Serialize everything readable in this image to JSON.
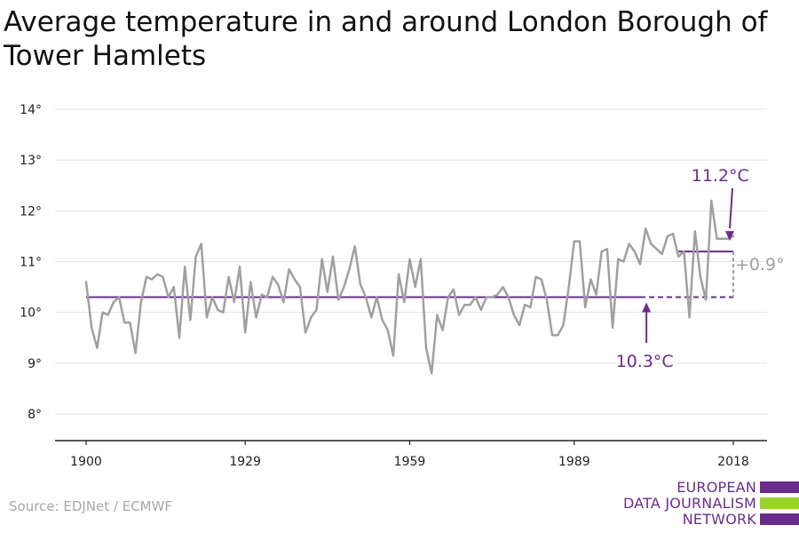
{
  "title": "Average temperature in and around London Borough of Tower Hamlets",
  "source": "Source: EDJNet / ECMWF",
  "logo": {
    "lines": [
      "EUROPEAN",
      "DATA JOURNALISM",
      "NETWORK"
    ],
    "colors": {
      "purple": "#6b2c8e",
      "green": "#9ad12b"
    }
  },
  "colors": {
    "series": "#a0a0a0",
    "average": "#6b2c8e",
    "grid": "#e2e2e2",
    "axis": "#222222"
  },
  "chart_data": {
    "type": "line",
    "title": "Average temperature in and around London Borough of Tower Hamlets",
    "xlabel": "",
    "ylabel": "",
    "xlim": [
      1900,
      2018
    ],
    "ylim": [
      8,
      14
    ],
    "x_ticks": [
      1900,
      1929,
      1959,
      1989,
      2018
    ],
    "y_ticks": [
      8,
      9,
      10,
      11,
      12,
      13,
      14
    ],
    "y_tick_labels": [
      "8°",
      "9°",
      "10°",
      "11°",
      "12°",
      "13°",
      "14°"
    ],
    "grid": true,
    "x_start": 1900,
    "values": [
      10.6,
      9.7,
      9.3,
      10.0,
      9.95,
      10.2,
      10.3,
      9.8,
      9.8,
      9.2,
      10.2,
      10.7,
      10.65,
      10.75,
      10.7,
      10.3,
      10.5,
      9.5,
      10.9,
      9.85,
      11.1,
      11.35,
      9.9,
      10.3,
      10.05,
      10.0,
      10.7,
      10.2,
      10.9,
      9.6,
      10.6,
      9.9,
      10.35,
      10.3,
      10.7,
      10.55,
      10.2,
      10.85,
      10.65,
      10.5,
      9.6,
      9.9,
      10.05,
      11.05,
      10.4,
      11.1,
      10.25,
      10.5,
      10.85,
      11.3,
      10.55,
      10.3,
      9.9,
      10.3,
      9.85,
      9.65,
      9.15,
      10.75,
      10.2,
      11.05,
      10.5,
      11.05,
      9.3,
      8.8,
      9.95,
      9.65,
      10.3,
      10.45,
      9.95,
      10.15,
      10.15,
      10.3,
      10.05,
      10.3,
      10.3,
      10.35,
      10.5,
      10.3,
      9.95,
      9.75,
      10.15,
      10.1,
      10.7,
      10.65,
      10.25,
      9.55,
      9.55,
      9.75,
      10.5,
      11.4,
      11.4,
      10.1,
      10.65,
      10.35,
      11.2,
      11.25,
      9.7,
      11.05,
      11.0,
      11.35,
      11.2,
      10.95,
      11.65,
      11.35,
      11.25,
      11.15,
      11.5,
      11.55,
      11.1,
      11.2,
      9.9,
      11.6,
      10.7,
      10.25,
      12.2,
      11.45,
      11.45,
      11.45,
      11.5
    ],
    "reference": {
      "value": 10.3,
      "label": "10.3°C",
      "solid_until": 2001,
      "dashed_until": 2018
    },
    "recent": {
      "value": 11.2,
      "label": "11.2°C",
      "from": 2008,
      "to": 2018
    },
    "difference_label": "+0.9°"
  }
}
